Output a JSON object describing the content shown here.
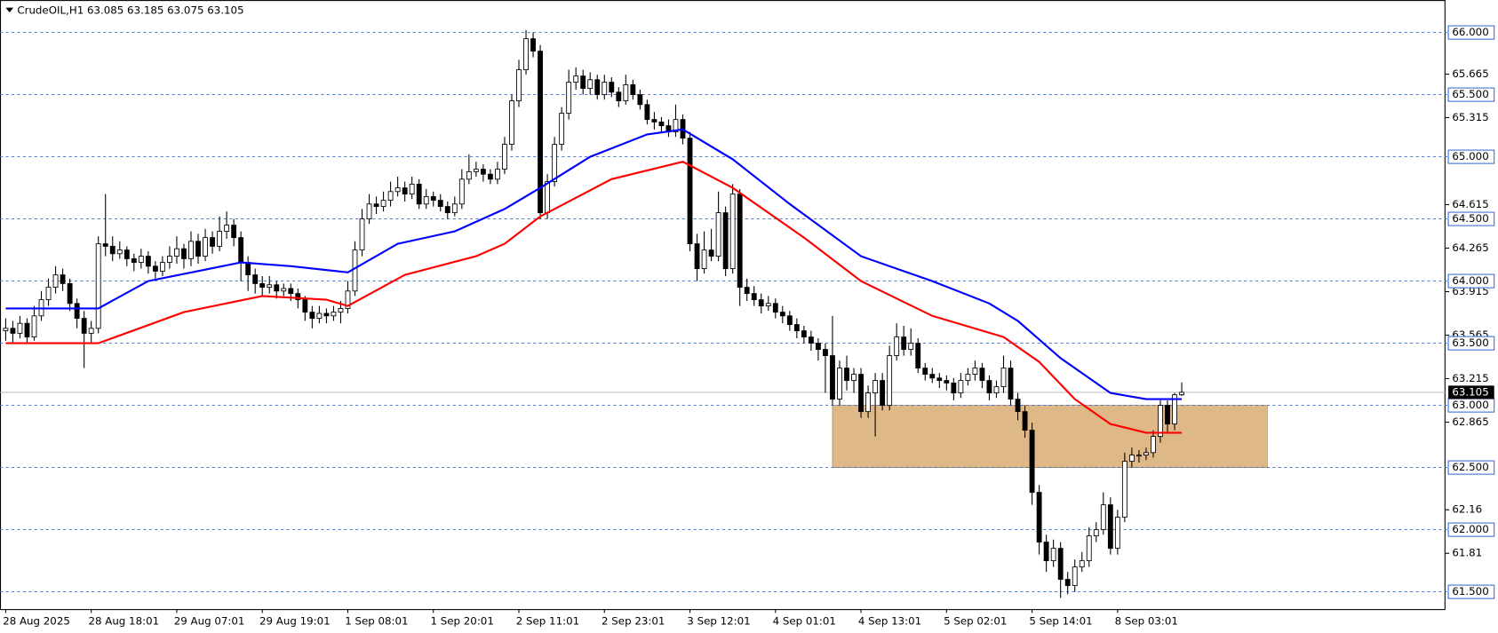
{
  "chart_data": {
    "type": "candlestick",
    "title": "CrudeOIL,H1  63.085 63.185 63.075 63.105",
    "ylim": [
      61.361,
      66.261
    ],
    "xlim": [
      -0.8,
      202
    ],
    "yticks": [
      65.665,
      65.315,
      64.615,
      64.265,
      63.915,
      63.565,
      63.215,
      62.865,
      62.16,
      61.81
    ],
    "xticks": [
      {
        "value": 0,
        "label": "28 Aug 2025"
      },
      {
        "value": 12,
        "label": "28 Aug 18:01"
      },
      {
        "value": 24,
        "label": "29 Aug 07:01"
      },
      {
        "value": 36,
        "label": "29 Aug 19:01"
      },
      {
        "value": 48,
        "label": "1 Sep 08:01"
      },
      {
        "value": 60,
        "label": "1 Sep 20:01"
      },
      {
        "value": 72,
        "label": "2 Sep 11:01"
      },
      {
        "value": 84,
        "label": "2 Sep 23:01"
      },
      {
        "value": 96,
        "label": "3 Sep 12:01"
      },
      {
        "value": 108,
        "label": "4 Sep 01:01"
      },
      {
        "value": 120,
        "label": "4 Sep 13:01"
      },
      {
        "value": 132,
        "label": "5 Sep 02:01"
      },
      {
        "value": 144,
        "label": "5 Sep 14:01"
      },
      {
        "value": 156,
        "label": "8 Sep 03:01"
      }
    ],
    "levels": [
      {
        "value": 66,
        "label": "66.000"
      },
      {
        "value": 65.5,
        "label": "65.500"
      },
      {
        "value": 65,
        "label": "65.000"
      },
      {
        "value": 64.5,
        "label": "64.500"
      },
      {
        "value": 64,
        "label": "64.000"
      },
      {
        "value": 63.5,
        "label": "63.500"
      },
      {
        "value": 63,
        "label": "63.000"
      },
      {
        "value": 62.5,
        "label": "62.500"
      },
      {
        "value": 62,
        "label": "62.000"
      },
      {
        "value": 61.5,
        "label": "61.500"
      }
    ],
    "level_color": "#3b6fd6",
    "current_price": 63.105,
    "zone": {
      "xlim": [
        116,
        177
      ],
      "ylim": [
        62.5,
        63.0
      ],
      "color": "#deb887"
    },
    "bull_color": "#ffffff",
    "bear_color": "#000000",
    "series": [
      {
        "color": "#0000ff",
        "x": [
          0,
          13,
          20,
          33,
          40,
          48,
          55,
          63,
          70,
          75,
          82,
          90,
          95,
          102,
          110,
          120,
          130,
          138,
          142,
          148,
          155,
          160,
          165
        ],
        "values": [
          63.78,
          63.78,
          64.0,
          64.15,
          64.12,
          64.07,
          64.3,
          64.4,
          64.58,
          64.75,
          65.0,
          65.18,
          65.22,
          64.98,
          64.62,
          64.2,
          64.0,
          63.82,
          63.68,
          63.38,
          63.1,
          63.05,
          63.05
        ]
      },
      {
        "color": "#ff0000",
        "x": [
          0,
          13,
          25,
          36,
          45,
          48,
          56,
          66,
          70,
          75,
          85,
          95,
          102,
          112,
          120,
          130,
          140,
          145,
          150,
          155,
          160,
          165
        ],
        "values": [
          63.5,
          63.5,
          63.75,
          63.88,
          63.85,
          63.8,
          64.05,
          64.2,
          64.3,
          64.52,
          64.82,
          64.96,
          64.75,
          64.35,
          64.0,
          63.72,
          63.55,
          63.35,
          63.05,
          62.85,
          62.78,
          62.78
        ]
      }
    ],
    "ohlc": [
      [
        63.6,
        63.7,
        63.52,
        63.62
      ],
      [
        63.62,
        63.68,
        63.5,
        63.58
      ],
      [
        63.58,
        63.72,
        63.54,
        63.66
      ],
      [
        63.66,
        63.7,
        63.5,
        63.55
      ],
      [
        63.55,
        63.8,
        63.52,
        63.72
      ],
      [
        63.72,
        63.92,
        63.68,
        63.85
      ],
      [
        63.85,
        64.02,
        63.8,
        63.95
      ],
      [
        63.95,
        64.12,
        63.9,
        64.05
      ],
      [
        64.05,
        64.1,
        63.92,
        63.98
      ],
      [
        63.98,
        64.02,
        63.76,
        63.82
      ],
      [
        63.82,
        63.86,
        63.62,
        63.7
      ],
      [
        63.7,
        63.76,
        63.3,
        63.58
      ],
      [
        63.58,
        63.68,
        63.5,
        63.62
      ],
      [
        63.62,
        64.36,
        63.58,
        64.3
      ],
      [
        64.3,
        64.7,
        64.2,
        64.28
      ],
      [
        64.28,
        64.36,
        64.16,
        64.22
      ],
      [
        64.22,
        64.32,
        64.18,
        64.25
      ],
      [
        64.25,
        64.28,
        64.12,
        64.18
      ],
      [
        64.18,
        64.22,
        64.08,
        64.15
      ],
      [
        64.15,
        64.26,
        64.1,
        64.2
      ],
      [
        64.2,
        64.24,
        64.06,
        64.12
      ],
      [
        64.12,
        64.16,
        64.02,
        64.08
      ],
      [
        64.08,
        64.2,
        64.04,
        64.15
      ],
      [
        64.15,
        64.28,
        64.1,
        64.2
      ],
      [
        64.2,
        64.36,
        64.14,
        64.26
      ],
      [
        64.26,
        64.3,
        64.1,
        64.18
      ],
      [
        64.18,
        64.4,
        64.12,
        64.32
      ],
      [
        64.32,
        64.38,
        64.14,
        64.2
      ],
      [
        64.2,
        64.42,
        64.16,
        64.35
      ],
      [
        64.35,
        64.4,
        64.22,
        64.28
      ],
      [
        64.28,
        64.52,
        64.24,
        64.4
      ],
      [
        64.4,
        64.56,
        64.34,
        64.45
      ],
      [
        64.45,
        64.5,
        64.28,
        64.35
      ],
      [
        64.35,
        64.4,
        64.0,
        64.15
      ],
      [
        64.15,
        64.2,
        63.92,
        64.05
      ],
      [
        64.05,
        64.1,
        63.9,
        63.98
      ],
      [
        63.98,
        64.04,
        63.88,
        63.95
      ],
      [
        63.95,
        64.04,
        63.9,
        63.97
      ],
      [
        63.97,
        64.0,
        63.86,
        63.92
      ],
      [
        63.92,
        63.98,
        63.88,
        63.94
      ],
      [
        63.94,
        63.98,
        63.84,
        63.9
      ],
      [
        63.9,
        63.94,
        63.78,
        63.85
      ],
      [
        63.85,
        63.88,
        63.68,
        63.75
      ],
      [
        63.75,
        63.8,
        63.62,
        63.7
      ],
      [
        63.7,
        63.8,
        63.66,
        63.74
      ],
      [
        63.74,
        63.78,
        63.66,
        63.72
      ],
      [
        63.72,
        63.8,
        63.68,
        63.75
      ],
      [
        63.75,
        63.84,
        63.66,
        63.78
      ],
      [
        63.78,
        64.0,
        63.74,
        63.92
      ],
      [
        63.92,
        64.32,
        63.88,
        64.25
      ],
      [
        64.25,
        64.58,
        64.2,
        64.5
      ],
      [
        64.5,
        64.7,
        64.46,
        64.62
      ],
      [
        64.62,
        64.68,
        64.54,
        64.6
      ],
      [
        64.6,
        64.72,
        64.56,
        64.65
      ],
      [
        64.65,
        64.8,
        64.6,
        64.72
      ],
      [
        64.72,
        64.84,
        64.68,
        64.75
      ],
      [
        64.75,
        64.8,
        64.64,
        64.7
      ],
      [
        64.7,
        64.84,
        64.66,
        64.78
      ],
      [
        64.78,
        64.82,
        64.58,
        64.62
      ],
      [
        64.62,
        64.74,
        64.58,
        64.68
      ],
      [
        64.68,
        64.72,
        64.6,
        64.65
      ],
      [
        64.65,
        64.7,
        64.56,
        64.6
      ],
      [
        64.6,
        64.64,
        64.5,
        64.55
      ],
      [
        64.55,
        64.68,
        64.52,
        64.62
      ],
      [
        64.62,
        64.9,
        64.58,
        64.82
      ],
      [
        64.82,
        65.02,
        64.78,
        64.88
      ],
      [
        64.88,
        64.96,
        64.84,
        64.9
      ],
      [
        64.9,
        64.94,
        64.8,
        64.86
      ],
      [
        64.86,
        64.9,
        64.78,
        64.82
      ],
      [
        64.82,
        64.96,
        64.78,
        64.9
      ],
      [
        64.9,
        65.16,
        64.86,
        65.1
      ],
      [
        65.1,
        65.5,
        65.05,
        65.45
      ],
      [
        65.45,
        65.78,
        65.4,
        65.7
      ],
      [
        65.7,
        66.02,
        65.66,
        65.95
      ],
      [
        65.95,
        66.0,
        65.8,
        65.85
      ],
      [
        65.85,
        65.9,
        64.5,
        64.55
      ],
      [
        64.55,
        64.86,
        64.5,
        64.8
      ],
      [
        64.8,
        65.16,
        64.76,
        65.1
      ],
      [
        65.1,
        65.4,
        65.05,
        65.35
      ],
      [
        65.35,
        65.7,
        65.3,
        65.6
      ],
      [
        65.6,
        65.72,
        65.54,
        65.65
      ],
      [
        65.65,
        65.7,
        65.5,
        65.55
      ],
      [
        65.55,
        65.68,
        65.5,
        65.62
      ],
      [
        65.62,
        65.66,
        65.46,
        65.5
      ],
      [
        65.5,
        65.66,
        65.46,
        65.6
      ],
      [
        65.6,
        65.64,
        65.48,
        65.52
      ],
      [
        65.52,
        65.56,
        65.4,
        65.45
      ],
      [
        65.45,
        65.66,
        65.42,
        65.58
      ],
      [
        65.58,
        65.62,
        65.46,
        65.5
      ],
      [
        65.5,
        65.54,
        65.38,
        65.42
      ],
      [
        65.42,
        65.46,
        65.26,
        65.3
      ],
      [
        65.3,
        65.36,
        65.22,
        65.28
      ],
      [
        65.28,
        65.32,
        65.2,
        65.25
      ],
      [
        65.25,
        65.3,
        65.16,
        65.2
      ],
      [
        65.2,
        65.42,
        65.16,
        65.3
      ],
      [
        65.3,
        65.34,
        65.1,
        65.15
      ],
      [
        65.15,
        65.2,
        64.24,
        64.3
      ],
      [
        64.3,
        64.38,
        64.0,
        64.1
      ],
      [
        64.1,
        64.4,
        64.06,
        64.25
      ],
      [
        64.25,
        64.42,
        64.16,
        64.2
      ],
      [
        64.2,
        64.72,
        64.16,
        64.55
      ],
      [
        64.55,
        64.6,
        64.04,
        64.1
      ],
      [
        64.1,
        64.78,
        64.06,
        64.7
      ],
      [
        64.7,
        64.74,
        63.8,
        63.95
      ],
      [
        63.95,
        64.02,
        63.84,
        63.9
      ],
      [
        63.9,
        63.96,
        63.8,
        63.85
      ],
      [
        63.85,
        63.9,
        63.74,
        63.8
      ],
      [
        63.8,
        63.88,
        63.76,
        63.82
      ],
      [
        63.82,
        63.86,
        63.7,
        63.75
      ],
      [
        63.75,
        63.8,
        63.66,
        63.72
      ],
      [
        63.72,
        63.76,
        63.6,
        63.65
      ],
      [
        63.65,
        63.7,
        63.54,
        63.6
      ],
      [
        63.6,
        63.64,
        63.5,
        63.55
      ],
      [
        63.55,
        63.6,
        63.44,
        63.5
      ],
      [
        63.5,
        63.54,
        63.36,
        63.45
      ],
      [
        63.45,
        63.5,
        63.1,
        63.4
      ],
      [
        63.4,
        63.72,
        63.0,
        63.05
      ],
      [
        63.05,
        63.36,
        63.0,
        63.3
      ],
      [
        63.3,
        63.4,
        63.12,
        63.2
      ],
      [
        63.2,
        63.3,
        63.1,
        63.25
      ],
      [
        63.25,
        63.3,
        62.9,
        62.95
      ],
      [
        62.95,
        63.16,
        62.9,
        63.1
      ],
      [
        63.1,
        63.26,
        62.75,
        63.2
      ],
      [
        63.2,
        63.26,
        62.96,
        63.0
      ],
      [
        63.0,
        63.48,
        62.96,
        63.4
      ],
      [
        63.4,
        63.66,
        63.36,
        63.55
      ],
      [
        63.55,
        63.64,
        63.4,
        63.45
      ],
      [
        63.45,
        63.62,
        63.4,
        63.5
      ],
      [
        63.5,
        63.54,
        63.26,
        63.3
      ],
      [
        63.3,
        63.34,
        63.2,
        63.25
      ],
      [
        63.25,
        63.3,
        63.18,
        63.22
      ],
      [
        63.22,
        63.26,
        63.14,
        63.2
      ],
      [
        63.2,
        63.24,
        63.12,
        63.18
      ],
      [
        63.18,
        63.22,
        63.04,
        63.1
      ],
      [
        63.1,
        63.26,
        63.06,
        63.2
      ],
      [
        63.2,
        63.3,
        63.16,
        63.25
      ],
      [
        63.25,
        63.36,
        63.2,
        63.3
      ],
      [
        63.3,
        63.34,
        63.14,
        63.2
      ],
      [
        63.2,
        63.24,
        63.04,
        63.1
      ],
      [
        63.1,
        63.2,
        63.06,
        63.15
      ],
      [
        63.15,
        63.4,
        63.1,
        63.3
      ],
      [
        63.3,
        63.36,
        63.0,
        63.05
      ],
      [
        63.05,
        63.1,
        62.88,
        62.95
      ],
      [
        62.95,
        63.0,
        62.74,
        62.8
      ],
      [
        62.8,
        62.86,
        62.2,
        62.3
      ],
      [
        62.3,
        62.36,
        61.8,
        61.9
      ],
      [
        61.9,
        61.96,
        61.66,
        61.75
      ],
      [
        61.75,
        61.92,
        61.7,
        61.85
      ],
      [
        61.85,
        61.9,
        61.45,
        61.6
      ],
      [
        61.6,
        61.66,
        61.48,
        61.55
      ],
      [
        61.55,
        61.76,
        61.5,
        61.7
      ],
      [
        61.7,
        61.82,
        61.66,
        61.75
      ],
      [
        61.75,
        62.02,
        61.7,
        61.95
      ],
      [
        61.95,
        62.06,
        61.9,
        62.0
      ],
      [
        62.0,
        62.3,
        61.96,
        62.2
      ],
      [
        62.2,
        62.26,
        61.8,
        61.85
      ],
      [
        61.85,
        62.16,
        61.8,
        62.1
      ],
      [
        62.1,
        62.62,
        62.06,
        62.55
      ],
      [
        62.55,
        62.66,
        62.5,
        62.6
      ],
      [
        62.6,
        62.64,
        62.54,
        62.6
      ],
      [
        62.6,
        62.66,
        62.56,
        62.62
      ],
      [
        62.62,
        62.8,
        62.58,
        62.75
      ],
      [
        62.75,
        63.04,
        62.7,
        63.0
      ],
      [
        63.0,
        63.04,
        62.78,
        62.85
      ],
      [
        62.85,
        63.1,
        62.8,
        63.085
      ],
      [
        63.085,
        63.185,
        63.075,
        63.105
      ]
    ]
  }
}
